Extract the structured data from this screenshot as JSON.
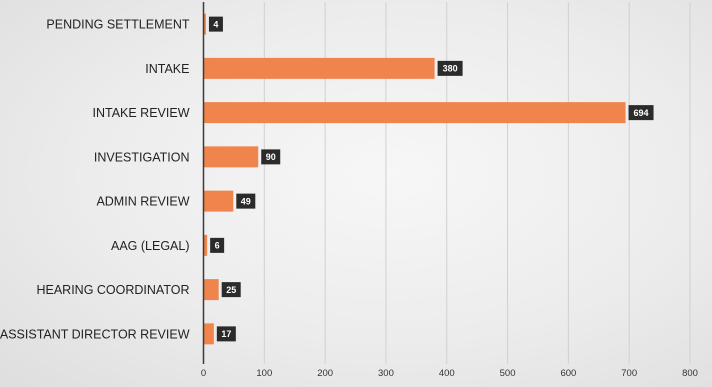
{
  "chart_data": {
    "type": "bar",
    "orientation": "horizontal",
    "categories": [
      "PENDING SETTLEMENT",
      "INTAKE",
      "INTAKE REVIEW",
      "INVESTIGATION",
      "ADMIN REVIEW",
      "AAG (LEGAL)",
      "HEARING COORDINATOR",
      "ASSISTANT DIRECTOR REVIEW"
    ],
    "values": [
      4,
      380,
      694,
      90,
      49,
      6,
      25,
      17
    ],
    "xlim": [
      0,
      800
    ],
    "xticks": [
      "0",
      "100",
      "200",
      "300",
      "400",
      "500",
      "600",
      "700",
      "800"
    ],
    "grid": "vertical",
    "legend": "none",
    "colors": {
      "bar": "#ef854d",
      "label_bg": "#2b2b2b",
      "label_text": "#ffffff",
      "grid": "#d0d0d0",
      "axis": "#3a3a3a"
    }
  }
}
